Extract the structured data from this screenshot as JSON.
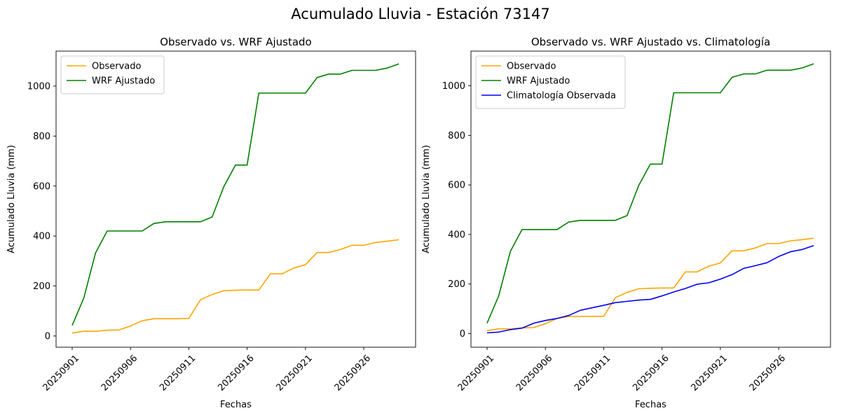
{
  "figure": {
    "suptitle": "Acumulado Lluvia - Estación 73147"
  },
  "colors": {
    "observado": "#ffa500",
    "wrf": "#008000",
    "clima": "#0000ff"
  },
  "chart_data": [
    {
      "type": "line",
      "title": "Observado vs. WRF Ajustado",
      "xlabel": "Fechas",
      "ylabel": "Acumulado Lluvia (mm)",
      "x": [
        "20250901",
        "20250902",
        "20250903",
        "20250904",
        "20250905",
        "20250906",
        "20250907",
        "20250908",
        "20250909",
        "20250910",
        "20250911",
        "20250912",
        "20250913",
        "20250914",
        "20250915",
        "20250916",
        "20250917",
        "20250918",
        "20250919",
        "20250920",
        "20250921",
        "20250922",
        "20250923",
        "20250924",
        "20250925",
        "20250926",
        "20250927",
        "20250928",
        "20250929"
      ],
      "xticks": [
        "20250901",
        "20250906",
        "20250911",
        "20250916",
        "20250921",
        "20250926"
      ],
      "yticks": [
        0,
        200,
        400,
        600,
        800,
        1000
      ],
      "ylim": [
        -45,
        1140
      ],
      "legend": "top-left",
      "series": [
        {
          "name": "Observado",
          "color": "#ffa500",
          "values": [
            12,
            19,
            19,
            23,
            24,
            40,
            61,
            69,
            69,
            69,
            70,
            145,
            166,
            181,
            183,
            184,
            184,
            249,
            249,
            272,
            285,
            334,
            334,
            346,
            363,
            363,
            374,
            379,
            385
          ]
        },
        {
          "name": "WRF Ajustado",
          "color": "#008000",
          "values": [
            42,
            152,
            332,
            420,
            420,
            420,
            420,
            450,
            457,
            457,
            457,
            457,
            476,
            598,
            684,
            684,
            972,
            972,
            972,
            972,
            972,
            1034,
            1048,
            1048,
            1063,
            1063,
            1063,
            1072,
            1089
          ]
        }
      ]
    },
    {
      "type": "line",
      "title": "Observado vs. WRF Ajustado vs. Climatología",
      "xlabel": "Fechas",
      "ylabel": "Acumulado Lluvia (mm)",
      "x": [
        "20250901",
        "20250902",
        "20250903",
        "20250904",
        "20250905",
        "20250906",
        "20250907",
        "20250908",
        "20250909",
        "20250910",
        "20250911",
        "20250912",
        "20250913",
        "20250914",
        "20250915",
        "20250916",
        "20250917",
        "20250918",
        "20250919",
        "20250920",
        "20250921",
        "20250922",
        "20250923",
        "20250924",
        "20250925",
        "20250926",
        "20250927",
        "20250928",
        "20250929"
      ],
      "xticks": [
        "20250901",
        "20250906",
        "20250911",
        "20250916",
        "20250921",
        "20250926"
      ],
      "yticks": [
        0,
        200,
        400,
        600,
        800,
        1000
      ],
      "ylim": [
        -55,
        1140
      ],
      "legend": "top-left",
      "series": [
        {
          "name": "Observado",
          "color": "#ffa500",
          "values": [
            12,
            19,
            19,
            23,
            24,
            40,
            61,
            69,
            69,
            69,
            70,
            145,
            166,
            181,
            183,
            184,
            184,
            249,
            249,
            272,
            285,
            334,
            334,
            346,
            363,
            363,
            374,
            379,
            385
          ]
        },
        {
          "name": "WRF Ajustado",
          "color": "#008000",
          "values": [
            42,
            152,
            332,
            420,
            420,
            420,
            420,
            450,
            457,
            457,
            457,
            457,
            476,
            598,
            684,
            684,
            972,
            972,
            972,
            972,
            972,
            1034,
            1048,
            1048,
            1063,
            1063,
            1063,
            1072,
            1089
          ]
        },
        {
          "name": "Climatología Observada",
          "color": "#0000ff",
          "values": [
            3,
            6,
            16,
            22,
            42,
            53,
            61,
            73,
            94,
            104,
            114,
            125,
            130,
            135,
            138,
            152,
            168,
            182,
            199,
            205,
            220,
            238,
            263,
            274,
            286,
            311,
            330,
            339,
            355
          ]
        }
      ]
    }
  ]
}
